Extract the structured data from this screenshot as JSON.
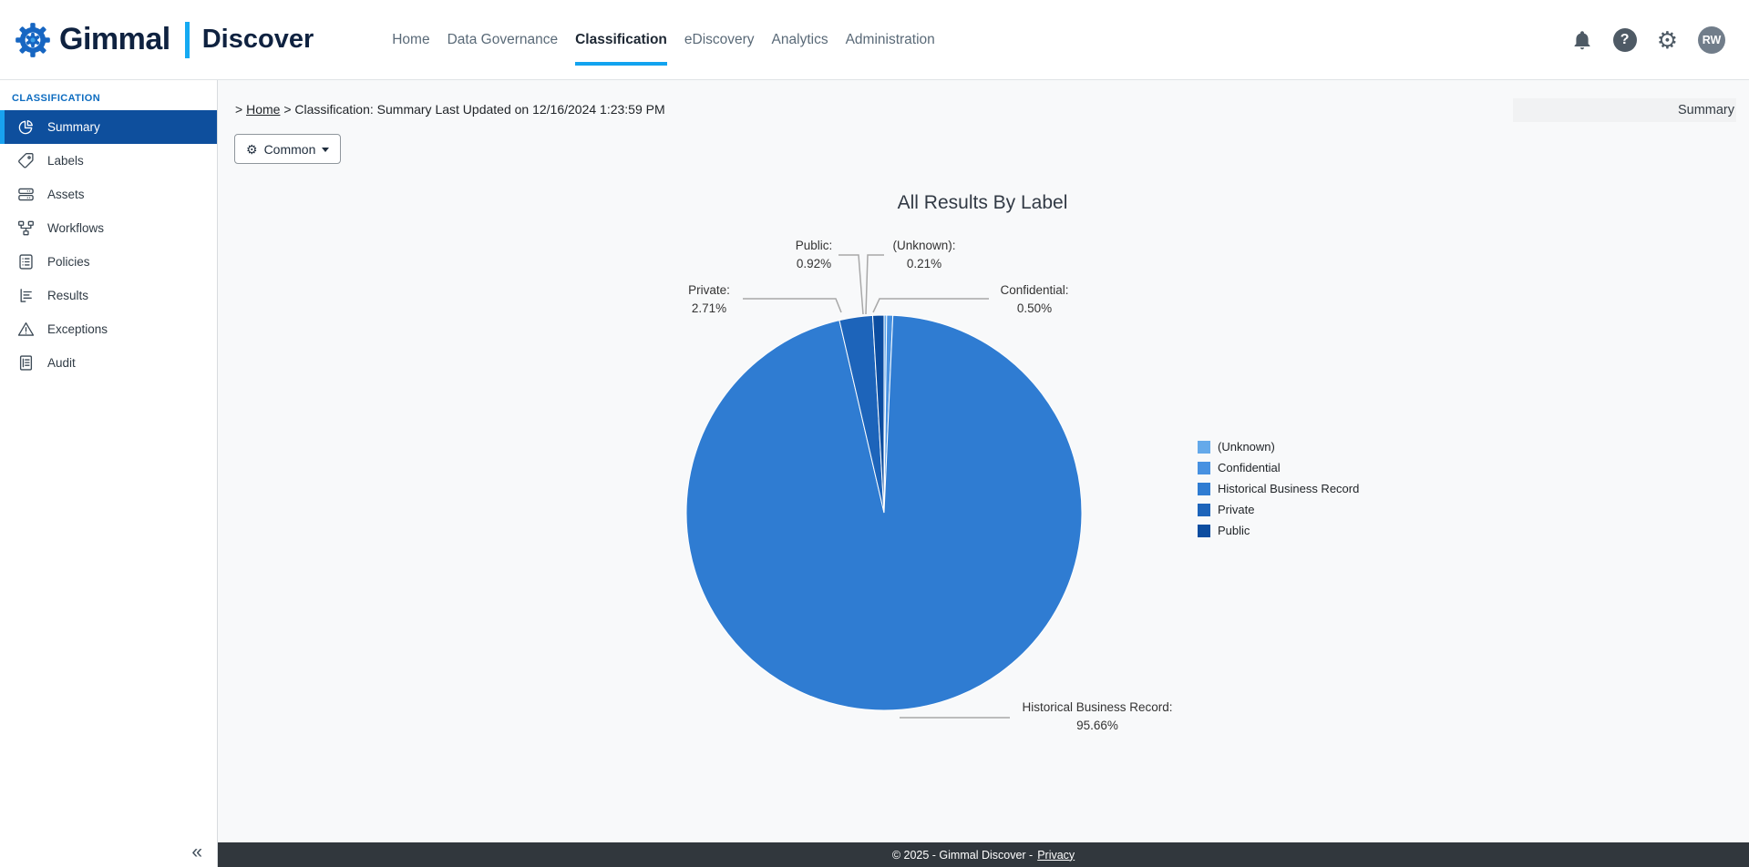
{
  "brand": {
    "name": "Gimmal",
    "product": "Discover"
  },
  "topnav": {
    "items": [
      {
        "label": "Home",
        "active": false
      },
      {
        "label": "Data Governance",
        "active": false
      },
      {
        "label": "Classification",
        "active": true
      },
      {
        "label": "eDiscovery",
        "active": false
      },
      {
        "label": "Analytics",
        "active": false
      },
      {
        "label": "Administration",
        "active": false
      }
    ]
  },
  "topbar_icons": {
    "help_glyph": "?",
    "gear_glyph": "⚙",
    "avatar_initials": "RW"
  },
  "sidebar": {
    "section": "CLASSIFICATION",
    "items": [
      {
        "label": "Summary",
        "icon": "pie-chart",
        "active": true
      },
      {
        "label": "Labels",
        "icon": "tag",
        "active": false
      },
      {
        "label": "Assets",
        "icon": "server",
        "active": false
      },
      {
        "label": "Workflows",
        "icon": "workflow",
        "active": false
      },
      {
        "label": "Policies",
        "icon": "policy-list",
        "active": false
      },
      {
        "label": "Results",
        "icon": "results-list",
        "active": false
      },
      {
        "label": "Exceptions",
        "icon": "warning-triangle",
        "active": false
      },
      {
        "label": "Audit",
        "icon": "audit-doc",
        "active": false
      }
    ],
    "collapse_glyph": "«"
  },
  "breadcrumb": {
    "sep": ">",
    "home": "Home",
    "text": "Classification: Summary Last Updated on 12/16/2024 1:23:59 PM"
  },
  "page": {
    "label": "Summary"
  },
  "toolbar": {
    "common_label": "Common",
    "gear_glyph": "⚙"
  },
  "chart_data": {
    "type": "pie",
    "title": "All Results By Label",
    "legend_position": "right",
    "label_format": "{name}: {value}%",
    "series": [
      {
        "name": "(Unknown)",
        "value": 0.21,
        "color": "#64a9ea"
      },
      {
        "name": "Confidential",
        "value": 0.5,
        "color": "#4791e1"
      },
      {
        "name": "Historical Business Record",
        "value": 95.66,
        "color": "#2f7cd2"
      },
      {
        "name": "Private",
        "value": 2.71,
        "color": "#1d64ba"
      },
      {
        "name": "Public",
        "value": 0.92,
        "color": "#0c4da0"
      }
    ]
  },
  "footer": {
    "copyright": "© 2025 - Gimmal Discover -",
    "privacy_label": "Privacy"
  }
}
